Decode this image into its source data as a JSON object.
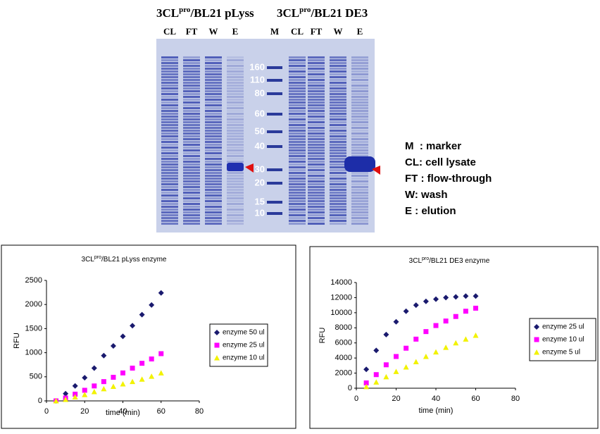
{
  "gel": {
    "headers": [
      {
        "main": "3CL",
        "sup": "pro",
        "rest": "/BL21 pLyss"
      },
      {
        "main": "3CL",
        "sup": "pro",
        "rest": "/BL21 DE3"
      }
    ],
    "lanes": [
      "CL",
      "FT",
      "W",
      "E",
      "M",
      "CL",
      "FT",
      "W",
      "E"
    ],
    "markers": [
      "160",
      "110",
      "80",
      "60",
      "50",
      "40",
      "30",
      "20",
      "15",
      "10"
    ],
    "legend": [
      "M  : marker",
      "CL: cell lysate",
      "FT : flow-through",
      "W: wash",
      "E : elution"
    ]
  },
  "chart_data": [
    {
      "type": "scatter",
      "title_parts": [
        "3CL",
        "pro",
        "/BL21 pLyss enzyme"
      ],
      "x_label": "time (min)",
      "y_label": "RFU",
      "xlim": [
        0,
        80
      ],
      "xticks": [
        0,
        20,
        40,
        60,
        80
      ],
      "ylim": [
        0,
        2500
      ],
      "yticks": [
        0,
        500,
        1000,
        1500,
        2000,
        2500
      ],
      "x": [
        5,
        10,
        15,
        20,
        25,
        30,
        35,
        40,
        45,
        50,
        55,
        60
      ],
      "series": [
        {
          "name": "enzyme 50 ul",
          "color": "#1a1a6e",
          "marker": "diamond",
          "values": [
            0,
            150,
            310,
            480,
            680,
            940,
            1140,
            1340,
            1560,
            1790,
            1990,
            2240
          ]
        },
        {
          "name": "enzyme 25 ul",
          "color": "#ff00ff",
          "marker": "square",
          "values": [
            0,
            60,
            140,
            220,
            310,
            400,
            490,
            580,
            680,
            780,
            870,
            980
          ]
        },
        {
          "name": "enzyme 10 ul",
          "color": "#f2f200",
          "marker": "triangle",
          "values": [
            0,
            30,
            80,
            130,
            190,
            250,
            300,
            350,
            400,
            450,
            510,
            580
          ]
        }
      ]
    },
    {
      "type": "scatter",
      "title_parts": [
        "3CL",
        "pro",
        "/BL21 DE3 enzyme"
      ],
      "x_label": "time (min)",
      "y_label": "RFU",
      "xlim": [
        0,
        80
      ],
      "xticks": [
        0,
        20,
        40,
        60,
        80
      ],
      "ylim": [
        0,
        14000
      ],
      "yticks": [
        0,
        2000,
        4000,
        6000,
        8000,
        10000,
        12000,
        14000
      ],
      "x": [
        5,
        10,
        15,
        20,
        25,
        30,
        35,
        40,
        45,
        50,
        55,
        60
      ],
      "series": [
        {
          "name": "enzyme 25 ul",
          "color": "#1a1a6e",
          "marker": "diamond",
          "values": [
            2500,
            5000,
            7100,
            8800,
            10200,
            11000,
            11500,
            11800,
            12000,
            12100,
            12200,
            12200
          ]
        },
        {
          "name": "enzyme 10 ul",
          "color": "#ff00ff",
          "marker": "square",
          "values": [
            700,
            1800,
            3100,
            4200,
            5300,
            6500,
            7500,
            8300,
            8900,
            9500,
            10200,
            10600
          ]
        },
        {
          "name": "enzyme 5 ul",
          "color": "#f2f200",
          "marker": "triangle",
          "values": [
            200,
            800,
            1500,
            2200,
            2800,
            3500,
            4200,
            4800,
            5400,
            6000,
            6500,
            7000
          ]
        }
      ]
    }
  ]
}
